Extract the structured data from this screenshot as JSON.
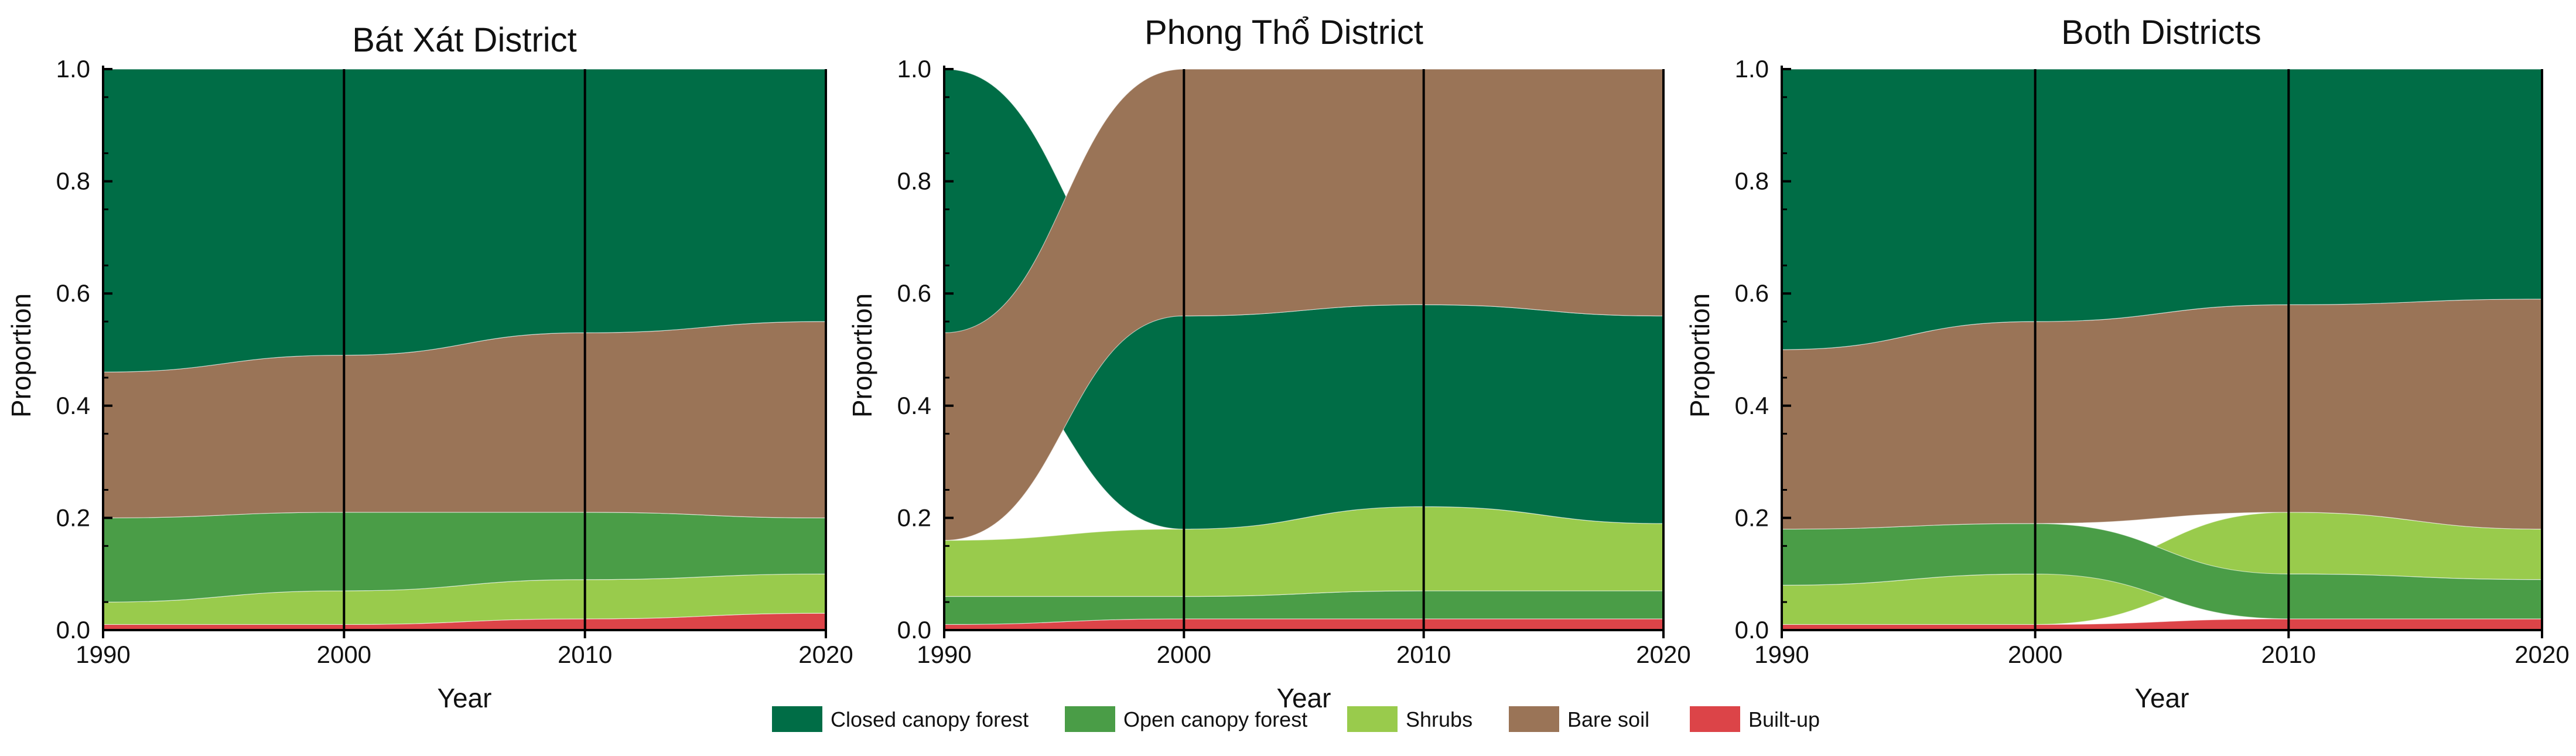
{
  "legend": [
    {
      "key": "closed",
      "label": "Closed canopy forest",
      "color": "#006d46"
    },
    {
      "key": "open",
      "label": "Open canopy forest",
      "color": "#4a9d47"
    },
    {
      "key": "shrubs",
      "label": "Shrubs",
      "color": "#99cb4c"
    },
    {
      "key": "bare",
      "label": "Bare soil",
      "color": "#9a7457"
    },
    {
      "key": "built",
      "label": "Built-up",
      "color": "#dc4448"
    }
  ],
  "chart_data": [
    {
      "type": "alluvial",
      "title": "Bát Xát District",
      "xlabel": "Year",
      "ylabel": "Proportion",
      "x": [
        1990,
        2000,
        2010,
        2020
      ],
      "xlim": [
        1990,
        2020
      ],
      "ylim": [
        0,
        1
      ],
      "yticks": [
        "0.0",
        "0.2",
        "0.4",
        "0.6",
        "0.8",
        "1.0"
      ],
      "xticks": [
        "1990",
        "2000",
        "2010",
        "2020"
      ],
      "stack_order_bottom_to_top": [
        "built",
        "shrubs",
        "open",
        "bare",
        "closed"
      ],
      "series": [
        {
          "key": "built",
          "name": "Built-up",
          "values": [
            0.01,
            0.01,
            0.02,
            0.03
          ]
        },
        {
          "key": "shrubs",
          "name": "Shrubs",
          "values": [
            0.04,
            0.06,
            0.07,
            0.07
          ]
        },
        {
          "key": "open",
          "name": "Open canopy forest",
          "values": [
            0.15,
            0.14,
            0.12,
            0.1
          ]
        },
        {
          "key": "bare",
          "name": "Bare soil",
          "values": [
            0.26,
            0.28,
            0.32,
            0.35
          ]
        },
        {
          "key": "closed",
          "name": "Closed canopy forest",
          "values": [
            0.54,
            0.51,
            0.47,
            0.45
          ]
        }
      ]
    },
    {
      "type": "alluvial",
      "title": "Phong Thổ District",
      "xlabel": "Year",
      "ylabel": "Proportion",
      "x": [
        1990,
        2000,
        2010,
        2020
      ],
      "xlim": [
        1990,
        2020
      ],
      "ylim": [
        0,
        1
      ],
      "yticks": [
        "0.0",
        "0.2",
        "0.4",
        "0.6",
        "0.8",
        "1.0"
      ],
      "xticks": [
        "1990",
        "2000",
        "2010",
        "2020"
      ],
      "stack_orders_bottom_to_top": [
        [
          "built",
          "open",
          "shrubs",
          "bare",
          "closed"
        ],
        [
          "built",
          "open",
          "shrubs",
          "closed",
          "bare"
        ],
        [
          "built",
          "open",
          "shrubs",
          "closed",
          "bare"
        ],
        [
          "built",
          "open",
          "shrubs",
          "closed",
          "bare"
        ]
      ],
      "series": [
        {
          "key": "built",
          "name": "Built-up",
          "values": [
            0.01,
            0.02,
            0.02,
            0.02
          ]
        },
        {
          "key": "open",
          "name": "Open canopy forest",
          "values": [
            0.05,
            0.04,
            0.05,
            0.05
          ]
        },
        {
          "key": "shrubs",
          "name": "Shrubs",
          "values": [
            0.1,
            0.12,
            0.15,
            0.12
          ]
        },
        {
          "key": "closed",
          "name": "Closed canopy forest",
          "values": [
            0.47,
            0.38,
            0.36,
            0.37
          ]
        },
        {
          "key": "bare",
          "name": "Bare soil",
          "values": [
            0.37,
            0.44,
            0.42,
            0.44
          ]
        }
      ]
    },
    {
      "type": "alluvial",
      "title": "Both Districts",
      "xlabel": "Year",
      "ylabel": "Proportion",
      "x": [
        1990,
        2000,
        2010,
        2020
      ],
      "xlim": [
        1990,
        2020
      ],
      "ylim": [
        0,
        1
      ],
      "yticks": [
        "0.0",
        "0.2",
        "0.4",
        "0.6",
        "0.8",
        "1.0"
      ],
      "xticks": [
        "1990",
        "2000",
        "2010",
        "2020"
      ],
      "stack_orders_bottom_to_top": [
        [
          "built",
          "shrubs",
          "open",
          "bare",
          "closed"
        ],
        [
          "built",
          "shrubs",
          "open",
          "bare",
          "closed"
        ],
        [
          "built",
          "open",
          "shrubs",
          "bare",
          "closed"
        ],
        [
          "built",
          "open",
          "shrubs",
          "bare",
          "closed"
        ]
      ],
      "series": [
        {
          "key": "built",
          "name": "Built-up",
          "values": [
            0.01,
            0.01,
            0.02,
            0.02
          ]
        },
        {
          "key": "shrubs",
          "name": "Shrubs",
          "values": [
            0.07,
            0.09,
            0.11,
            0.09
          ]
        },
        {
          "key": "open",
          "name": "Open canopy forest",
          "values": [
            0.1,
            0.09,
            0.08,
            0.07
          ]
        },
        {
          "key": "bare",
          "name": "Bare soil",
          "values": [
            0.32,
            0.36,
            0.37,
            0.41
          ]
        },
        {
          "key": "closed",
          "name": "Closed canopy forest",
          "values": [
            0.5,
            0.45,
            0.42,
            0.41
          ]
        }
      ]
    }
  ]
}
